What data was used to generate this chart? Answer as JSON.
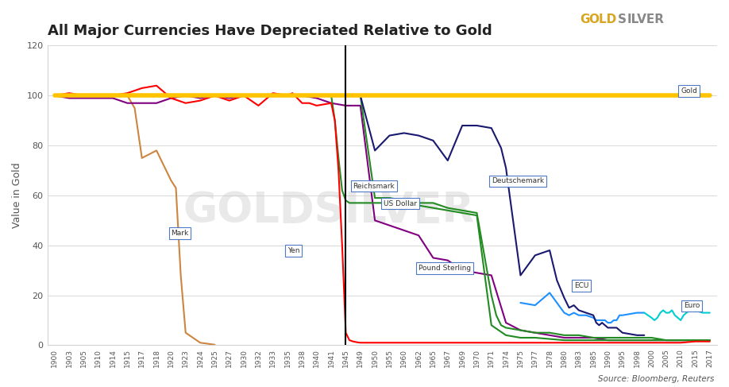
{
  "title": "All Major Currencies Have Depreciated Relative to Gold",
  "ylabel": "Value in Gold",
  "source_text": "Source: Bloomberg, Reuters",
  "ylim": [
    0,
    120
  ],
  "background_color": "#ffffff",
  "watermark_text": "GOLDSILVER",
  "x_ticks": [
    1900,
    1903,
    1905,
    1910,
    1914,
    1915,
    1917,
    1918,
    1920,
    1923,
    1924,
    1925,
    1927,
    1930,
    1932,
    1933,
    1935,
    1938,
    1940,
    1941,
    1945,
    1949,
    1950,
    1955,
    1960,
    1962,
    1965,
    1967,
    1969,
    1970,
    1971,
    1974,
    1975,
    1977,
    1978,
    1980,
    1983,
    1985,
    1990,
    1995,
    1998,
    2000,
    2005,
    2010,
    2015,
    2017
  ],
  "series": {
    "Gold": {
      "color": "#FFC300",
      "linewidth": 4,
      "zorder": 5,
      "data": [
        [
          1900,
          100
        ],
        [
          1903,
          100
        ],
        [
          1905,
          100
        ],
        [
          1910,
          100
        ],
        [
          1914,
          100
        ],
        [
          1915,
          100
        ],
        [
          1917,
          100
        ],
        [
          1918,
          100
        ],
        [
          1920,
          100
        ],
        [
          1923,
          100
        ],
        [
          1924,
          100
        ],
        [
          1925,
          100
        ],
        [
          1927,
          100
        ],
        [
          1930,
          100
        ],
        [
          1932,
          100
        ],
        [
          1933,
          100
        ],
        [
          1935,
          100
        ],
        [
          1938,
          100
        ],
        [
          1940,
          100
        ],
        [
          1941,
          100
        ],
        [
          1945,
          100
        ],
        [
          1949,
          100
        ],
        [
          1950,
          100
        ],
        [
          1955,
          100
        ],
        [
          1960,
          100
        ],
        [
          1962,
          100
        ],
        [
          1965,
          100
        ],
        [
          1967,
          100
        ],
        [
          1969,
          100
        ],
        [
          1970,
          100
        ],
        [
          1971,
          100
        ],
        [
          1974,
          100
        ],
        [
          1975,
          100
        ],
        [
          1977,
          100
        ],
        [
          1978,
          100
        ],
        [
          1980,
          100
        ],
        [
          1983,
          100
        ],
        [
          1985,
          100
        ],
        [
          1990,
          100
        ],
        [
          1995,
          100
        ],
        [
          1998,
          100
        ],
        [
          2000,
          100
        ],
        [
          2005,
          100
        ],
        [
          2010,
          100
        ],
        [
          2015,
          100
        ],
        [
          2017,
          100
        ]
      ]
    },
    "Yen": {
      "color": "#FF0000",
      "linewidth": 1.5,
      "zorder": 4,
      "data": [
        [
          1900,
          100
        ],
        [
          1903,
          101
        ],
        [
          1905,
          100
        ],
        [
          1910,
          100
        ],
        [
          1914,
          100
        ],
        [
          1915,
          101
        ],
        [
          1917,
          103
        ],
        [
          1918,
          104
        ],
        [
          1920,
          99
        ],
        [
          1923,
          97
        ],
        [
          1924,
          98
        ],
        [
          1925,
          100
        ],
        [
          1927,
          98
        ],
        [
          1930,
          100
        ],
        [
          1932,
          96
        ],
        [
          1933,
          101
        ],
        [
          1935,
          100
        ],
        [
          1936,
          101
        ],
        [
          1937,
          99
        ],
        [
          1938,
          97
        ],
        [
          1939,
          97
        ],
        [
          1940,
          96
        ],
        [
          1941,
          97
        ],
        [
          1942,
          90
        ],
        [
          1943,
          70
        ],
        [
          1944,
          40
        ],
        [
          1945,
          5
        ],
        [
          1946,
          2
        ],
        [
          1947,
          1.5
        ],
        [
          1948,
          1.2
        ],
        [
          1949,
          1.0
        ],
        [
          1950,
          1.0
        ],
        [
          1955,
          1.0
        ],
        [
          1960,
          1.0
        ],
        [
          1962,
          1.0
        ],
        [
          1965,
          1.0
        ],
        [
          1967,
          1.0
        ],
        [
          1969,
          1.0
        ],
        [
          1970,
          1.0
        ],
        [
          1971,
          1.0
        ],
        [
          1974,
          1.0
        ],
        [
          1975,
          1.0
        ],
        [
          1977,
          1.0
        ],
        [
          1978,
          1.0
        ],
        [
          1980,
          1.0
        ],
        [
          1983,
          1.0
        ],
        [
          1985,
          1.0
        ],
        [
          1990,
          1.0
        ],
        [
          1995,
          1.0
        ],
        [
          1998,
          1.0
        ],
        [
          2000,
          1.0
        ],
        [
          2005,
          1.0
        ],
        [
          2010,
          1.0
        ],
        [
          2015,
          1.5
        ],
        [
          2017,
          1.5
        ]
      ]
    },
    "Mark": {
      "color": "#CD853F",
      "linewidth": 1.5,
      "zorder": 3,
      "data": [
        [
          1900,
          100
        ],
        [
          1903,
          100
        ],
        [
          1905,
          100
        ],
        [
          1910,
          100
        ],
        [
          1914,
          100
        ],
        [
          1915,
          100
        ],
        [
          1916,
          95
        ],
        [
          1917,
          75
        ],
        [
          1918,
          78
        ],
        [
          1919,
          72
        ],
        [
          1920,
          66
        ],
        [
          1921,
          63
        ],
        [
          1922,
          28
        ],
        [
          1923,
          5
        ],
        [
          1924,
          1
        ],
        [
          1925,
          0.2
        ]
      ]
    },
    "Pound_Sterling": {
      "color": "#800080",
      "linewidth": 1.5,
      "zorder": 3,
      "data": [
        [
          1900,
          100
        ],
        [
          1903,
          99
        ],
        [
          1905,
          99
        ],
        [
          1910,
          99
        ],
        [
          1914,
          99
        ],
        [
          1915,
          97
        ],
        [
          1917,
          97
        ],
        [
          1918,
          97
        ],
        [
          1920,
          99
        ],
        [
          1923,
          100
        ],
        [
          1924,
          99
        ],
        [
          1925,
          100
        ],
        [
          1927,
          99
        ],
        [
          1930,
          100
        ],
        [
          1932,
          100
        ],
        [
          1933,
          100
        ],
        [
          1935,
          100
        ],
        [
          1938,
          100
        ],
        [
          1940,
          99
        ],
        [
          1941,
          97
        ],
        [
          1945,
          96
        ],
        [
          1949,
          96
        ],
        [
          1950,
          50
        ],
        [
          1955,
          48
        ],
        [
          1960,
          46
        ],
        [
          1962,
          44
        ],
        [
          1965,
          35
        ],
        [
          1967,
          34
        ],
        [
          1969,
          30
        ],
        [
          1970,
          29
        ],
        [
          1971,
          28
        ],
        [
          1974,
          9
        ],
        [
          1975,
          6
        ],
        [
          1977,
          5
        ],
        [
          1978,
          4
        ],
        [
          1980,
          3
        ],
        [
          1983,
          3
        ],
        [
          1985,
          3
        ],
        [
          1990,
          2
        ],
        [
          1995,
          2
        ],
        [
          1998,
          2
        ],
        [
          2000,
          2
        ],
        [
          2005,
          2
        ],
        [
          2010,
          2
        ],
        [
          2015,
          2
        ],
        [
          2017,
          2
        ]
      ]
    },
    "Reichsmark": {
      "color": "#228B22",
      "linewidth": 1.5,
      "zorder": 4,
      "data": [
        [
          1924,
          100
        ],
        [
          1925,
          100
        ],
        [
          1927,
          100
        ],
        [
          1930,
          100
        ],
        [
          1932,
          100
        ],
        [
          1933,
          100
        ],
        [
          1935,
          100
        ],
        [
          1938,
          100
        ],
        [
          1940,
          100
        ],
        [
          1941,
          100
        ],
        [
          1942,
          90
        ],
        [
          1943,
          75
        ],
        [
          1944,
          62
        ],
        [
          1945,
          58
        ],
        [
          1946,
          57
        ],
        [
          1947,
          57
        ],
        [
          1948,
          57
        ],
        [
          1949,
          57
        ],
        [
          1950,
          57
        ],
        [
          1955,
          57
        ],
        [
          1960,
          57
        ],
        [
          1962,
          56
        ],
        [
          1965,
          55
        ],
        [
          1967,
          54
        ],
        [
          1969,
          53
        ],
        [
          1970,
          52
        ],
        [
          1971,
          8
        ],
        [
          1974,
          4
        ],
        [
          1975,
          3
        ],
        [
          1977,
          3
        ],
        [
          1978,
          2.5
        ],
        [
          1980,
          2
        ],
        [
          1983,
          2
        ],
        [
          1985,
          2
        ],
        [
          1990,
          2
        ],
        [
          1995,
          2
        ],
        [
          1998,
          2
        ],
        [
          2000,
          2
        ],
        [
          2005,
          2
        ],
        [
          2010,
          2
        ],
        [
          2015,
          2
        ],
        [
          2017,
          2
        ]
      ]
    },
    "Deutschemark": {
      "color": "#191970",
      "linewidth": 1.5,
      "zorder": 4,
      "data": [
        [
          1948,
          100
        ],
        [
          1949,
          100
        ],
        [
          1950,
          78
        ],
        [
          1955,
          84
        ],
        [
          1960,
          85
        ],
        [
          1962,
          84
        ],
        [
          1965,
          82
        ],
        [
          1967,
          74
        ],
        [
          1969,
          88
        ],
        [
          1970,
          88
        ],
        [
          1971,
          87
        ],
        [
          1972,
          83
        ],
        [
          1973,
          79
        ],
        [
          1974,
          71
        ],
        [
          1975,
          28
        ],
        [
          1977,
          36
        ],
        [
          1978,
          38
        ],
        [
          1979,
          26
        ],
        [
          1980,
          19
        ],
        [
          1981,
          15
        ],
        [
          1982,
          16
        ],
        [
          1983,
          14
        ],
        [
          1984,
          13
        ],
        [
          1985,
          12
        ],
        [
          1986,
          9
        ],
        [
          1987,
          8
        ],
        [
          1988,
          9
        ],
        [
          1989,
          8
        ],
        [
          1990,
          7
        ],
        [
          1991,
          7
        ],
        [
          1992,
          7
        ],
        [
          1993,
          7
        ],
        [
          1994,
          6
        ],
        [
          1995,
          5
        ],
        [
          1998,
          4
        ],
        [
          1999,
          4
        ]
      ]
    },
    "US_Dollar": {
      "color": "#228B22",
      "linewidth": 1.5,
      "zorder": 3,
      "data": [
        [
          1900,
          100
        ],
        [
          1903,
          100
        ],
        [
          1905,
          100
        ],
        [
          1910,
          100
        ],
        [
          1914,
          100
        ],
        [
          1915,
          100
        ],
        [
          1917,
          100
        ],
        [
          1918,
          100
        ],
        [
          1920,
          100
        ],
        [
          1923,
          100
        ],
        [
          1924,
          100
        ],
        [
          1925,
          100
        ],
        [
          1927,
          100
        ],
        [
          1930,
          100
        ],
        [
          1932,
          100
        ],
        [
          1933,
          100
        ],
        [
          1935,
          100
        ],
        [
          1938,
          100
        ],
        [
          1940,
          100
        ],
        [
          1941,
          100
        ],
        [
          1945,
          100
        ],
        [
          1949,
          100
        ],
        [
          1950,
          59
        ],
        [
          1955,
          59
        ],
        [
          1960,
          58
        ],
        [
          1962,
          57
        ],
        [
          1965,
          57
        ],
        [
          1967,
          55
        ],
        [
          1969,
          54
        ],
        [
          1970,
          53
        ],
        [
          1971,
          20
        ],
        [
          1972,
          12
        ],
        [
          1973,
          8
        ],
        [
          1974,
          7
        ],
        [
          1975,
          6
        ],
        [
          1977,
          5
        ],
        [
          1978,
          5
        ],
        [
          1980,
          4
        ],
        [
          1983,
          4
        ],
        [
          1985,
          3
        ],
        [
          1990,
          3
        ],
        [
          1995,
          3
        ],
        [
          1998,
          3
        ],
        [
          2000,
          3
        ],
        [
          2005,
          2
        ],
        [
          2010,
          2
        ],
        [
          2015,
          2
        ],
        [
          2017,
          2
        ]
      ]
    },
    "ECU": {
      "color": "#1E90FF",
      "linewidth": 1.5,
      "zorder": 3,
      "data": [
        [
          1975,
          17
        ],
        [
          1977,
          16
        ],
        [
          1978,
          21
        ],
        [
          1979,
          17
        ],
        [
          1980,
          13
        ],
        [
          1981,
          12
        ],
        [
          1982,
          13
        ],
        [
          1983,
          12
        ],
        [
          1984,
          12
        ],
        [
          1985,
          11
        ],
        [
          1986,
          10
        ],
        [
          1987,
          10
        ],
        [
          1988,
          10
        ],
        [
          1989,
          10
        ],
        [
          1990,
          9
        ],
        [
          1991,
          9
        ],
        [
          1992,
          10
        ],
        [
          1993,
          10
        ],
        [
          1994,
          12
        ],
        [
          1995,
          12
        ],
        [
          1998,
          13
        ],
        [
          1999,
          13
        ]
      ]
    },
    "Euro": {
      "color": "#00CED1",
      "linewidth": 1.5,
      "zorder": 3,
      "data": [
        [
          1999,
          13
        ],
        [
          2000,
          11
        ],
        [
          2001,
          10
        ],
        [
          2002,
          11
        ],
        [
          2003,
          13
        ],
        [
          2004,
          14
        ],
        [
          2005,
          13
        ],
        [
          2006,
          13
        ],
        [
          2007,
          14
        ],
        [
          2008,
          12
        ],
        [
          2009,
          11
        ],
        [
          2010,
          10
        ],
        [
          2011,
          12
        ],
        [
          2012,
          13
        ],
        [
          2013,
          14
        ],
        [
          2014,
          14
        ],
        [
          2015,
          14
        ],
        [
          2016,
          13
        ],
        [
          2017,
          13
        ]
      ]
    }
  },
  "vertical_line_year": 1945,
  "annotations": {
    "Gold": {
      "year": 2010,
      "y": 101,
      "text": "Gold"
    },
    "Mark": {
      "year": 1920,
      "y": 44,
      "text": "Mark"
    },
    "Yen": {
      "year": 1935,
      "y": 37,
      "text": "Yen"
    },
    "Reichsmark": {
      "year": 1947,
      "y": 63,
      "text": "Reichsmark"
    },
    "US_Dollar": {
      "year": 1953,
      "y": 56,
      "text": "US Dollar"
    },
    "Pound_Sterling": {
      "year": 1962,
      "y": 30,
      "text": "Pound Sterling"
    },
    "Deutschemark": {
      "year": 1971,
      "y": 65,
      "text": "Deutschemark"
    },
    "ECU": {
      "year": 1982,
      "y": 23,
      "text": "ECU"
    },
    "Euro": {
      "year": 2011,
      "y": 15,
      "text": "Euro"
    }
  }
}
